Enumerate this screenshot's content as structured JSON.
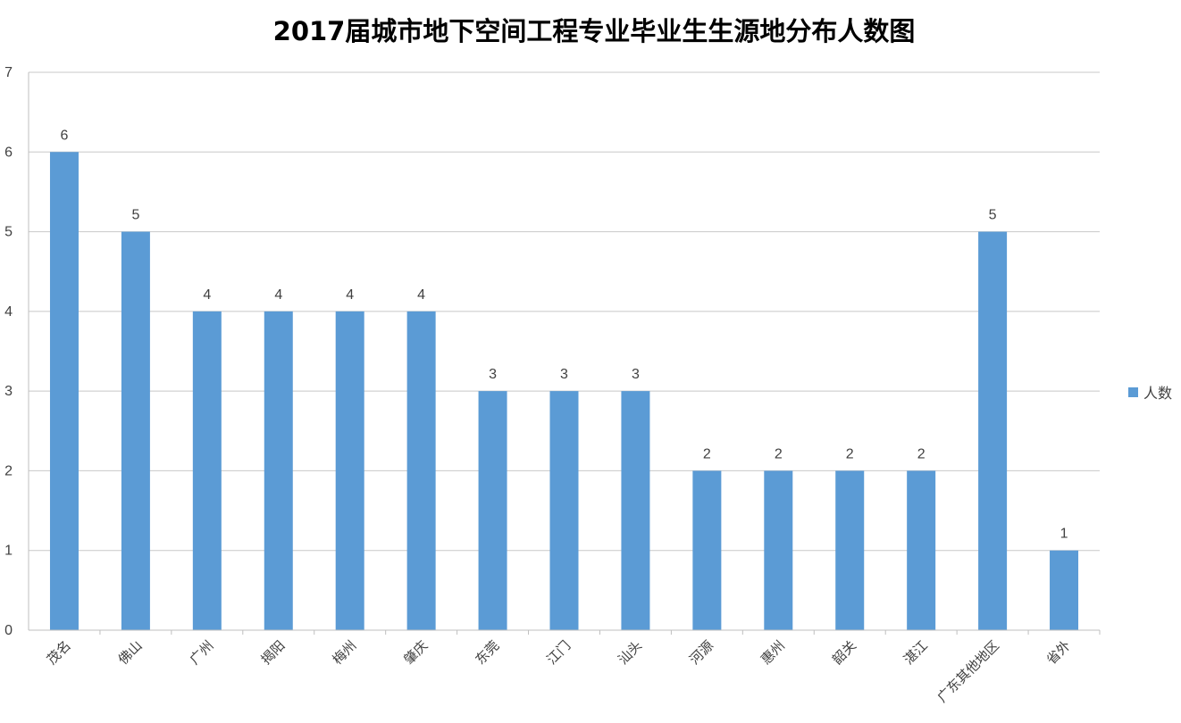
{
  "chart_data": {
    "type": "bar",
    "title": "2017届城市地下空间工程专业毕业生生源地分布人数图",
    "categories": [
      "茂名",
      "佛山",
      "广州",
      "揭阳",
      "梅州",
      "肇庆",
      "东莞",
      "江门",
      "汕头",
      "河源",
      "惠州",
      "韶关",
      "湛江",
      "广东其他地区",
      "省外"
    ],
    "series": [
      {
        "name": "人数",
        "color": "#5B9BD5",
        "values": [
          6,
          5,
          4,
          4,
          4,
          4,
          3,
          3,
          3,
          2,
          2,
          2,
          2,
          5,
          1
        ]
      }
    ],
    "ylim": [
      0,
      7
    ],
    "yticks": [
      0,
      1,
      2,
      3,
      4,
      5,
      6,
      7
    ],
    "grid": true,
    "data_labels": true,
    "legend_position": "right"
  }
}
